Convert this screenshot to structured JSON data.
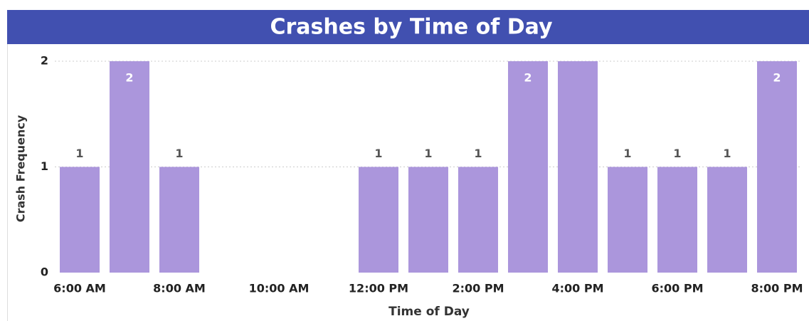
{
  "chart_data": {
    "type": "bar",
    "title": "Crashes by Time of Day",
    "x_label": "Time of Day",
    "y_label": "Crash Frequency",
    "categories": [
      "6:00 AM",
      null,
      "8:00 AM",
      null,
      "10:00 AM",
      null,
      "12:00 PM",
      null,
      "2:00 PM",
      null,
      "4:00 PM",
      null,
      "6:00 PM",
      null,
      "8:00 PM"
    ],
    "values": [
      1,
      2,
      1,
      null,
      null,
      null,
      1,
      1,
      1,
      2,
      2,
      1,
      1,
      1,
      2
    ],
    "value_labels": [
      "1",
      "2",
      "1",
      null,
      null,
      null,
      "1",
      "1",
      "1",
      "2",
      null,
      "1",
      "1",
      "1",
      "2"
    ],
    "color": "#ab96dc",
    "ylim": [
      0,
      2
    ],
    "yticks": [
      0,
      1,
      2
    ],
    "grid": true
  }
}
